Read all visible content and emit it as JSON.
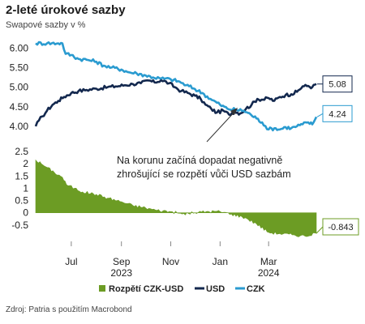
{
  "header": {
    "title": "2-leté úrokové sazby",
    "subtitle": "Swapové sazby v %"
  },
  "annotation": {
    "line1": "Na korunu začíná dopadat negativně",
    "line2": "zhrošující se rozpětí vůči USD sazbám"
  },
  "source": "Zdroj: Patria s použitím Macrobond",
  "colors": {
    "usd": "#13284e",
    "czk": "#2a9bd0",
    "spread": "#6c9c24"
  },
  "chart_data": [
    {
      "type": "line",
      "title": "",
      "x_domain": [
        "2023-05-18",
        "2024-05-01"
      ],
      "ylim": [
        3.75,
        6.15
      ],
      "y_ticks": [
        "6.00",
        "5.50",
        "5.00",
        "4.50",
        "4.00"
      ],
      "series": [
        {
          "name": "USD",
          "color": "#13284e",
          "end_label": "5.08",
          "points": [
            [
              "2023-05-18",
              4.0
            ],
            [
              "2023-05-22",
              4.15
            ],
            [
              "2023-05-26",
              4.25
            ],
            [
              "2023-06-01",
              4.4
            ],
            [
              "2023-06-08",
              4.55
            ],
            [
              "2023-06-15",
              4.65
            ],
            [
              "2023-06-22",
              4.75
            ],
            [
              "2023-07-01",
              4.85
            ],
            [
              "2023-07-10",
              4.9
            ],
            [
              "2023-07-20",
              4.93
            ],
            [
              "2023-08-01",
              4.96
            ],
            [
              "2023-08-15",
              5.0
            ],
            [
              "2023-08-25",
              5.02
            ],
            [
              "2023-09-05",
              5.05
            ],
            [
              "2023-09-15",
              5.08
            ],
            [
              "2023-09-25",
              5.1
            ],
            [
              "2023-10-05",
              5.17
            ],
            [
              "2023-10-12",
              5.12
            ],
            [
              "2023-10-20",
              5.18
            ],
            [
              "2023-10-30",
              5.1
            ],
            [
              "2023-11-06",
              5.0
            ],
            [
              "2023-11-14",
              4.9
            ],
            [
              "2023-11-22",
              4.85
            ],
            [
              "2023-12-01",
              4.78
            ],
            [
              "2023-12-08",
              4.7
            ],
            [
              "2023-12-14",
              4.55
            ],
            [
              "2023-12-21",
              4.45
            ],
            [
              "2023-12-28",
              4.35
            ],
            [
              "2024-01-05",
              4.4
            ],
            [
              "2024-01-12",
              4.3
            ],
            [
              "2024-01-19",
              4.38
            ],
            [
              "2024-01-26",
              4.33
            ],
            [
              "2024-02-02",
              4.45
            ],
            [
              "2024-02-09",
              4.55
            ],
            [
              "2024-02-16",
              4.7
            ],
            [
              "2024-02-23",
              4.68
            ],
            [
              "2024-03-01",
              4.72
            ],
            [
              "2024-03-08",
              4.65
            ],
            [
              "2024-03-15",
              4.75
            ],
            [
              "2024-03-22",
              4.8
            ],
            [
              "2024-03-29",
              4.82
            ],
            [
              "2024-04-05",
              4.88
            ],
            [
              "2024-04-12",
              5.02
            ],
            [
              "2024-04-19",
              5.03
            ],
            [
              "2024-04-24",
              5.0
            ],
            [
              "2024-04-29",
              5.08
            ]
          ]
        },
        {
          "name": "CZK",
          "color": "#2a9bd0",
          "end_label": "4.24",
          "points": [
            [
              "2023-05-18",
              6.12
            ],
            [
              "2023-06-01",
              6.12
            ],
            [
              "2023-06-15",
              6.12
            ],
            [
              "2023-06-20",
              6.12
            ],
            [
              "2023-06-24",
              5.85
            ],
            [
              "2023-07-01",
              5.82
            ],
            [
              "2023-07-10",
              5.72
            ],
            [
              "2023-07-20",
              5.7
            ],
            [
              "2023-08-01",
              5.65
            ],
            [
              "2023-08-10",
              5.55
            ],
            [
              "2023-08-20",
              5.5
            ],
            [
              "2023-09-01",
              5.45
            ],
            [
              "2023-09-10",
              5.38
            ],
            [
              "2023-09-20",
              5.35
            ],
            [
              "2023-10-01",
              5.3
            ],
            [
              "2023-10-10",
              5.25
            ],
            [
              "2023-10-20",
              5.22
            ],
            [
              "2023-11-01",
              5.2
            ],
            [
              "2023-11-10",
              5.15
            ],
            [
              "2023-11-20",
              5.05
            ],
            [
              "2023-12-01",
              4.95
            ],
            [
              "2023-12-10",
              4.85
            ],
            [
              "2023-12-20",
              4.7
            ],
            [
              "2024-01-01",
              4.55
            ],
            [
              "2024-01-10",
              4.45
            ],
            [
              "2024-01-20",
              4.42
            ],
            [
              "2024-01-30",
              4.4
            ],
            [
              "2024-02-08",
              4.3
            ],
            [
              "2024-02-15",
              4.2
            ],
            [
              "2024-02-22",
              4.1
            ],
            [
              "2024-03-01",
              3.92
            ],
            [
              "2024-03-08",
              3.95
            ],
            [
              "2024-03-15",
              3.92
            ],
            [
              "2024-03-22",
              3.98
            ],
            [
              "2024-03-29",
              3.95
            ],
            [
              "2024-04-05",
              4.0
            ],
            [
              "2024-04-12",
              4.05
            ],
            [
              "2024-04-19",
              4.1
            ],
            [
              "2024-04-24",
              4.05
            ],
            [
              "2024-04-29",
              4.24
            ]
          ]
        }
      ]
    },
    {
      "type": "area",
      "x_domain": [
        "2023-05-18",
        "2024-05-01"
      ],
      "ylim": [
        -1.1,
        2.7
      ],
      "y_ticks": [
        "2.5",
        "2",
        "1.5",
        "1",
        "0.5",
        "0",
        "-0.5"
      ],
      "series": [
        {
          "name": "Rozpětí CZK-USD",
          "color": "#6c9c24",
          "end_label": "-0.843",
          "points": [
            [
              "2023-05-18",
              2.15
            ],
            [
              "2023-05-25",
              2.0
            ],
            [
              "2023-06-01",
              1.85
            ],
            [
              "2023-06-10",
              1.65
            ],
            [
              "2023-06-20",
              1.45
            ],
            [
              "2023-06-25",
              1.15
            ],
            [
              "2023-07-05",
              1.0
            ],
            [
              "2023-07-15",
              0.85
            ],
            [
              "2023-08-01",
              0.75
            ],
            [
              "2023-08-15",
              0.6
            ],
            [
              "2023-09-01",
              0.45
            ],
            [
              "2023-09-15",
              0.3
            ],
            [
              "2023-10-01",
              0.2
            ],
            [
              "2023-10-15",
              0.1
            ],
            [
              "2023-11-01",
              0.05
            ],
            [
              "2023-11-15",
              -0.05
            ],
            [
              "2023-12-01",
              0.0
            ],
            [
              "2023-12-15",
              0.05
            ],
            [
              "2024-01-01",
              0.05
            ],
            [
              "2024-01-15",
              -0.05
            ],
            [
              "2024-02-01",
              -0.2
            ],
            [
              "2024-02-15",
              -0.45
            ],
            [
              "2024-03-01",
              -0.8
            ],
            [
              "2024-03-15",
              -0.85
            ],
            [
              "2024-04-01",
              -0.9
            ],
            [
              "2024-04-15",
              -0.95
            ],
            [
              "2024-04-29",
              -0.84
            ]
          ]
        }
      ]
    }
  ],
  "x_axis": {
    "months": [
      {
        "label": "Jul",
        "date": "2023-07-01"
      },
      {
        "label": "Sep",
        "date": "2023-09-01"
      },
      {
        "label": "Nov",
        "date": "2023-11-01"
      },
      {
        "label": "Jan",
        "date": "2024-01-01"
      },
      {
        "label": "Mar",
        "date": "2024-03-01"
      }
    ],
    "years": [
      {
        "label": "2023",
        "date": "2023-09-01"
      },
      {
        "label": "2024",
        "date": "2024-03-01"
      }
    ]
  },
  "legend": [
    {
      "name": "Rozpětí CZK-USD",
      "color": "#6c9c24",
      "kind": "bar"
    },
    {
      "name": "USD",
      "color": "#13284e",
      "kind": "line"
    },
    {
      "name": "CZK",
      "color": "#2a9bd0",
      "kind": "line"
    }
  ]
}
